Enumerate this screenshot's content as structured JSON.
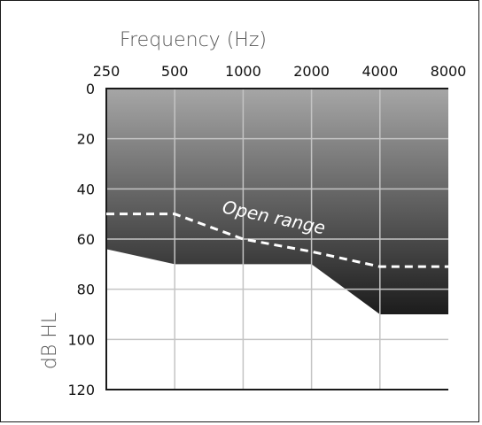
{
  "chart_data": {
    "type": "area",
    "title": "",
    "xlabel": "Frequency (Hz)",
    "ylabel": "dB HL",
    "x_categories": [
      "250",
      "500",
      "1000",
      "2000",
      "4000",
      "8000"
    ],
    "y_ticks": [
      "0",
      "20",
      "40",
      "60",
      "80",
      "100",
      "120"
    ],
    "ylim": [
      0,
      120
    ],
    "y_inverted": true,
    "grid": true,
    "fill_colors": {
      "top": "#a6a6a6",
      "bottom": "#1c1c1c"
    },
    "series": [
      {
        "style": "filled-area",
        "points": [
          {
            "x": "250",
            "y": 64
          },
          {
            "x": "500",
            "y": 70
          },
          {
            "x": "1000",
            "y": 70
          },
          {
            "x": "2000",
            "y": 70
          },
          {
            "x": "4000",
            "y": 90
          },
          {
            "x": "8000",
            "y": 90
          }
        ]
      },
      {
        "style": "dashed-line",
        "color": "#ffffff",
        "points": [
          {
            "x": "250",
            "y": 50
          },
          {
            "x": "500",
            "y": 50
          },
          {
            "x": "1000",
            "y": 60
          },
          {
            "x": "2000",
            "y": 65
          },
          {
            "x": "4000",
            "y": 71
          },
          {
            "x": "8000",
            "y": 71
          }
        ]
      }
    ],
    "annotations": [
      {
        "text": "Open range"
      }
    ]
  }
}
